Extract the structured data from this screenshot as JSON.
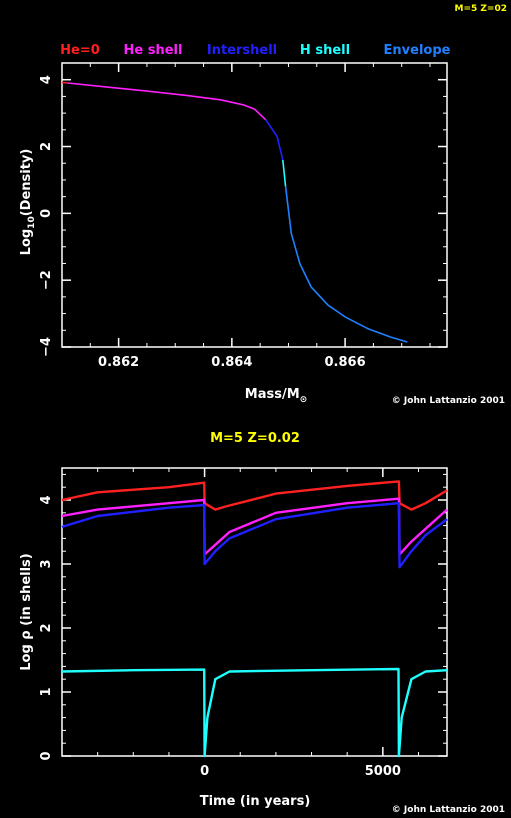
{
  "corner_label": "M=5 Z=02",
  "colors": {
    "he0": "#ff2020",
    "he_shell": "#ff20ff",
    "intershell": "#2020ff",
    "h_shell": "#20ffff",
    "envelope": "#2080ff",
    "accent_yellow": "#ffff00"
  },
  "chart_data": [
    {
      "type": "line",
      "title": "",
      "legend": [
        {
          "label": "He=0",
          "color": "#ff2020"
        },
        {
          "label": "He shell",
          "color": "#ff20ff"
        },
        {
          "label": "Intershell",
          "color": "#2020ff"
        },
        {
          "label": "H shell",
          "color": "#20ffff"
        },
        {
          "label": "Envelope",
          "color": "#2080ff"
        }
      ],
      "xlabel": "Mass/M",
      "xlabel_sub": "⊙",
      "ylabel": "Log",
      "ylabel_sub": "10",
      "ylabel_tail": "(Density)",
      "xlim": [
        0.861,
        0.8678
      ],
      "ylim": [
        -4,
        4.5
      ],
      "xticks": [
        0.862,
        0.864,
        0.866
      ],
      "xtick_labels": [
        "0.862",
        "0.864",
        "0.866"
      ],
      "yticks": [
        -4,
        -2,
        0,
        2,
        4
      ],
      "ytick_labels": [
        "−4",
        "−2",
        "0",
        "2",
        "4"
      ],
      "credit": "© John Lattanzio 2001",
      "series": [
        {
          "color": "#ff2020",
          "points": [
            [
              0.861,
              3.92
            ],
            [
              0.8611,
              3.9
            ]
          ]
        },
        {
          "color": "#ff20ff",
          "points": [
            [
              0.8611,
              3.9
            ],
            [
              0.8618,
              3.78
            ],
            [
              0.8625,
              3.66
            ],
            [
              0.8632,
              3.53
            ],
            [
              0.8638,
              3.4
            ],
            [
              0.8642,
              3.25
            ],
            [
              0.8644,
              3.12
            ],
            [
              0.8646,
              2.8
            ]
          ]
        },
        {
          "color": "#2020ff",
          "points": [
            [
              0.8646,
              2.8
            ],
            [
              0.8648,
              2.3
            ],
            [
              0.8649,
              1.6
            ]
          ]
        },
        {
          "color": "#20ffff",
          "points": [
            [
              0.8649,
              1.6
            ],
            [
              0.86495,
              0.8
            ]
          ]
        },
        {
          "color": "#2080ff",
          "points": [
            [
              0.86495,
              0.8
            ],
            [
              0.86505,
              -0.6
            ],
            [
              0.8652,
              -1.5
            ],
            [
              0.8654,
              -2.2
            ],
            [
              0.8657,
              -2.75
            ],
            [
              0.866,
              -3.1
            ],
            [
              0.8664,
              -3.45
            ],
            [
              0.8668,
              -3.7
            ],
            [
              0.8671,
              -3.85
            ]
          ]
        }
      ]
    },
    {
      "type": "line",
      "title": "M=5 Z=0.02",
      "xlabel": "Time (in years)",
      "ylabel": "Log ρ (in shells)",
      "xlim": [
        -4000,
        6800
      ],
      "ylim": [
        0,
        4.5
      ],
      "xticks": [
        0,
        5000
      ],
      "xtick_labels": [
        "0",
        "5000"
      ],
      "yticks": [
        0,
        1,
        2,
        3,
        4
      ],
      "ytick_labels": [
        "0",
        "1",
        "2",
        "3",
        "4"
      ],
      "credit": "© John Lattanzio 2001",
      "series": [
        {
          "color": "#ff2020",
          "points": [
            [
              -4000,
              4.0
            ],
            [
              -3000,
              4.12
            ],
            [
              -1000,
              4.2
            ],
            [
              -10,
              4.27
            ],
            [
              0,
              3.95
            ],
            [
              300,
              3.85
            ],
            [
              600,
              3.9
            ],
            [
              2000,
              4.1
            ],
            [
              4000,
              4.22
            ],
            [
              5450,
              4.29
            ],
            [
              5470,
              3.95
            ],
            [
              5800,
              3.85
            ],
            [
              6200,
              3.95
            ],
            [
              6800,
              4.15
            ]
          ]
        },
        {
          "color": "#ff20ff",
          "points": [
            [
              -4000,
              3.75
            ],
            [
              -3000,
              3.85
            ],
            [
              -1000,
              3.95
            ],
            [
              -10,
              4.0
            ],
            [
              0,
              3.15
            ],
            [
              300,
              3.3
            ],
            [
              700,
              3.5
            ],
            [
              2000,
              3.8
            ],
            [
              4000,
              3.95
            ],
            [
              5450,
              4.02
            ],
            [
              5470,
              3.15
            ],
            [
              5800,
              3.35
            ],
            [
              6200,
              3.55
            ],
            [
              6800,
              3.85
            ]
          ]
        },
        {
          "color": "#2020ff",
          "points": [
            [
              -4000,
              3.58
            ],
            [
              -3000,
              3.75
            ],
            [
              -1000,
              3.88
            ],
            [
              -10,
              3.92
            ],
            [
              0,
              3.0
            ],
            [
              300,
              3.2
            ],
            [
              700,
              3.4
            ],
            [
              2000,
              3.7
            ],
            [
              4000,
              3.88
            ],
            [
              5450,
              3.95
            ],
            [
              5470,
              2.95
            ],
            [
              5800,
              3.2
            ],
            [
              6200,
              3.45
            ],
            [
              6800,
              3.7
            ]
          ]
        },
        {
          "color": "#20ffff",
          "points": [
            [
              -4000,
              1.32
            ],
            [
              -2000,
              1.34
            ],
            [
              -10,
              1.35
            ],
            [
              0,
              0.0
            ],
            [
              80,
              0.6
            ],
            [
              300,
              1.2
            ],
            [
              700,
              1.32
            ],
            [
              3000,
              1.34
            ],
            [
              5440,
              1.36
            ],
            [
              5450,
              0.0
            ],
            [
              5530,
              0.6
            ],
            [
              5800,
              1.2
            ],
            [
              6200,
              1.32
            ],
            [
              6800,
              1.34
            ]
          ]
        }
      ]
    }
  ]
}
